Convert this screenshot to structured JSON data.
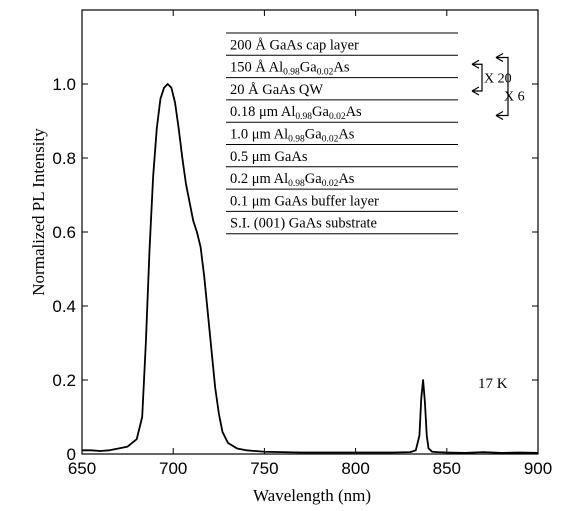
{
  "chart_data": {
    "type": "line",
    "title": "",
    "xlabel": "Wavelength (nm)",
    "ylabel": "Normalized PL Intensity",
    "xlim": [
      650,
      900
    ],
    "ylim": [
      0,
      1.2
    ],
    "xticks": [
      650,
      700,
      750,
      800,
      850,
      900
    ],
    "yticks": [
      0,
      0.2,
      0.4,
      0.6,
      0.8,
      1.0
    ],
    "ytick_labels": [
      "0",
      "0.2",
      "0.4",
      "0.6",
      "0.8",
      "1.0"
    ],
    "grid": false,
    "annotation": "17 K",
    "series": [
      {
        "x": [
          650,
          655,
          660,
          665,
          670,
          675,
          680,
          683,
          685,
          687,
          689,
          691,
          693,
          695,
          697,
          699,
          701,
          703,
          705,
          707,
          709,
          711,
          713,
          715,
          717,
          719,
          721,
          723,
          725,
          727,
          730,
          735,
          740,
          745,
          750,
          760,
          770,
          780,
          790,
          800,
          810,
          820,
          830,
          833,
          835,
          836,
          837,
          838,
          839,
          840,
          842,
          845,
          850,
          860,
          870,
          880,
          890,
          900
        ],
        "y": [
          0.01,
          0.01,
          0.008,
          0.01,
          0.015,
          0.02,
          0.04,
          0.1,
          0.3,
          0.55,
          0.75,
          0.88,
          0.96,
          0.99,
          1.0,
          0.99,
          0.95,
          0.88,
          0.8,
          0.73,
          0.68,
          0.63,
          0.6,
          0.56,
          0.48,
          0.38,
          0.28,
          0.18,
          0.11,
          0.06,
          0.03,
          0.015,
          0.01,
          0.008,
          0.006,
          0.005,
          0.004,
          0.004,
          0.004,
          0.004,
          0.004,
          0.004,
          0.005,
          0.01,
          0.05,
          0.15,
          0.2,
          0.14,
          0.05,
          0.015,
          0.006,
          0.005,
          0.004,
          0.003,
          0.005,
          0.003,
          0.004,
          0.003
        ]
      }
    ]
  },
  "inset": {
    "layers": [
      {
        "thickness": "200 Å",
        "material": "GaAs  cap layer"
      },
      {
        "thickness": "150 Å",
        "material": "Al",
        "sub1": "0.98",
        "mid": "Ga",
        "sub2": "0.02",
        "tail": "As"
      },
      {
        "thickness": "20 Å",
        "material": "GaAs  QW"
      },
      {
        "thickness": "0.18 μm",
        "material": "Al",
        "sub1": "0.98",
        "mid": "Ga",
        "sub2": "0.02",
        "tail": "As"
      },
      {
        "thickness": "1.0 μm",
        "material": "Al",
        "sub1": "0.98",
        "mid": "Ga",
        "sub2": "0.02",
        "tail": "As"
      },
      {
        "thickness": "0.5 μm",
        "material": "GaAs"
      },
      {
        "thickness": "0.2 μm",
        "material": "Al",
        "sub1": "0.98",
        "mid": "Ga",
        "sub2": "0.02",
        "tail": "As"
      },
      {
        "thickness": "0.1 μm",
        "material": "GaAs buffer layer"
      },
      {
        "thickness": "",
        "material": "S.I. (001) GaAs substrate"
      }
    ],
    "repeat_inner": "X 20",
    "repeat_outer": "X 6"
  }
}
